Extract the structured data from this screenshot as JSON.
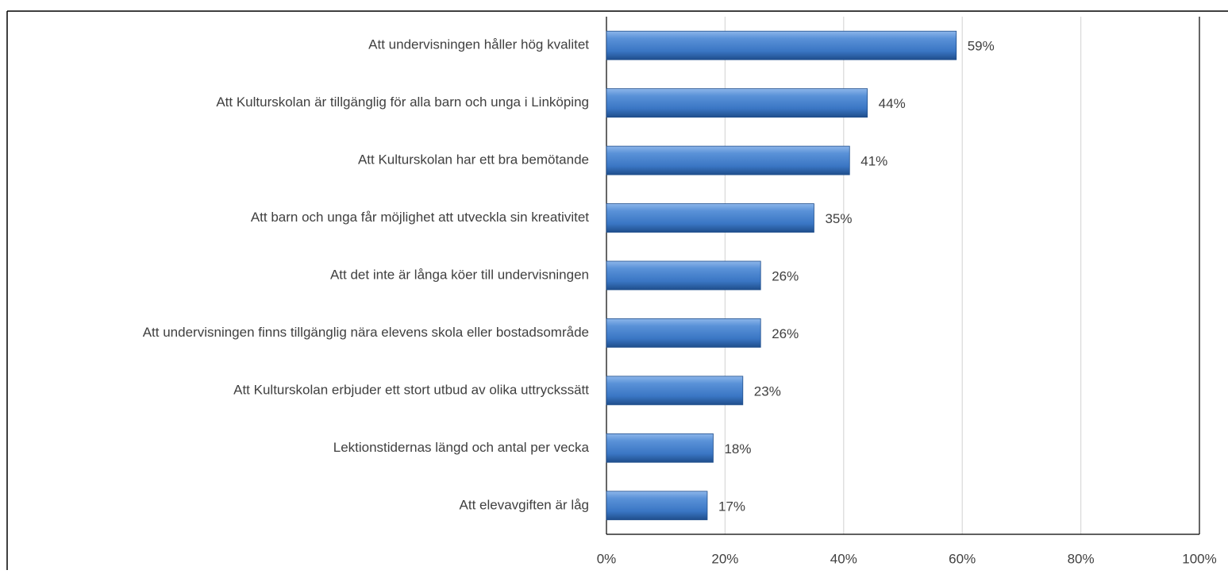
{
  "chart_data": {
    "type": "bar",
    "orientation": "horizontal",
    "categories": [
      "Att undervisningen håller hög kvalitet",
      "Att Kulturskolan är tillgänglig för alla barn och unga i Linköping",
      "Att Kulturskolan har ett bra bemötande",
      "Att barn och unga får möjlighet att utveckla sin kreativitet",
      "Att det inte är långa köer till undervisningen",
      "Att undervisningen finns tillgänglig nära elevens skola eller bostadsområde",
      "Att Kulturskolan erbjuder ett stort utbud av olika uttryckssätt",
      "Lektionstidernas längd och antal per vecka",
      "Att elevavgiften är låg"
    ],
    "values": [
      59,
      44,
      41,
      35,
      26,
      26,
      23,
      18,
      17
    ],
    "value_labels": [
      "59%",
      "44%",
      "41%",
      "35%",
      "26%",
      "26%",
      "23%",
      "18%",
      "17%"
    ],
    "color": "#3a76c4",
    "xlim": [
      0,
      100
    ],
    "xticks": [
      {
        "value": 0,
        "label": "0%"
      },
      {
        "value": 20,
        "label": "20%"
      },
      {
        "value": 40,
        "label": "40%"
      },
      {
        "value": 60,
        "label": "60%"
      },
      {
        "value": 80,
        "label": "80%"
      },
      {
        "value": 100,
        "label": "100%"
      }
    ],
    "grid": true
  }
}
